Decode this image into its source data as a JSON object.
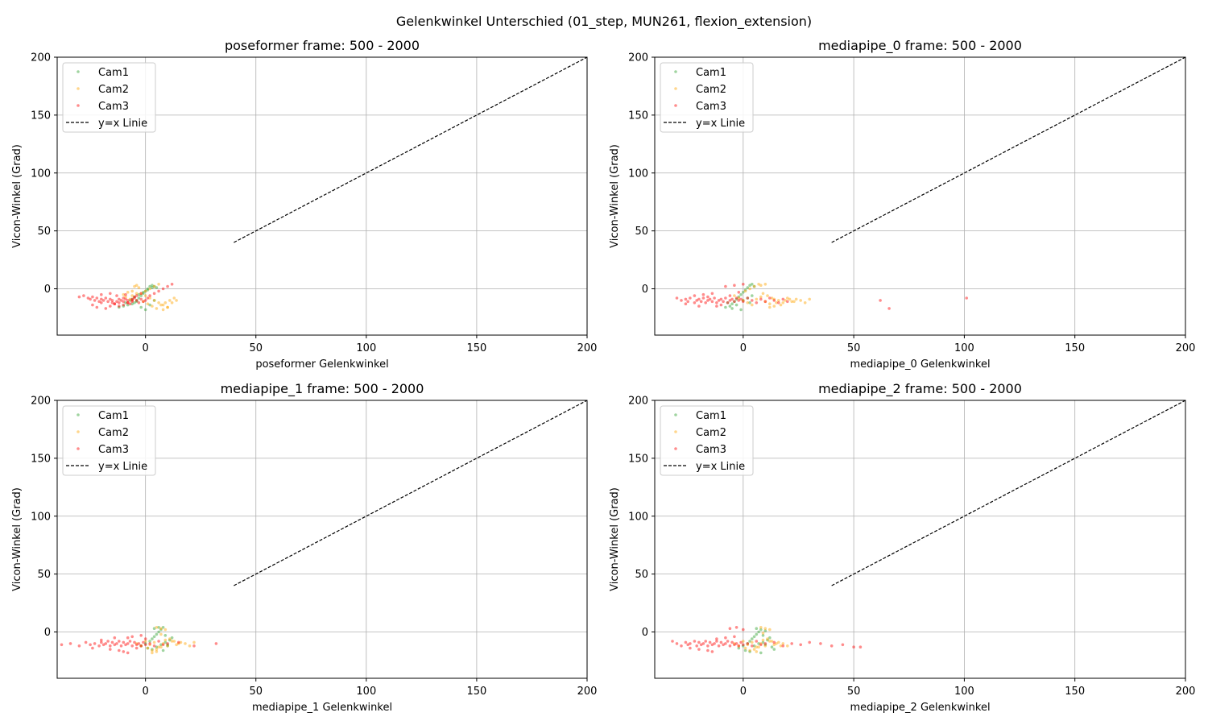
{
  "figure": {
    "suptitle": "Gelenkwinkel Unterschied (01_step, MUN261, flexion_extension)"
  },
  "colors": {
    "Cam1": "#2ca02c",
    "Cam2": "#ffa500",
    "Cam3": "#ff0000",
    "ref_line": "#000000",
    "grid": "#b0b0b0"
  },
  "chart_data": [
    {
      "type": "scatter",
      "title": "poseformer frame: 500 - 2000",
      "xlabel": "poseformer Gelenkwinkel",
      "ylabel": "Vicon-Winkel (Grad)",
      "xlim": [
        -40,
        200
      ],
      "ylim": [
        -40,
        200
      ],
      "xticks": [
        0,
        50,
        100,
        150,
        200
      ],
      "yticks": [
        0,
        50,
        100,
        150,
        200
      ],
      "grid": true,
      "legend": "top-left",
      "legend_entries": [
        "Cam1",
        "Cam2",
        "Cam3",
        "y=x Linie"
      ],
      "reference_line": {
        "name": "y=x Linie",
        "from": 40,
        "to": 200
      },
      "series": [
        {
          "name": "Cam1",
          "color": "#2ca02c",
          "x": [
            -12,
            -10,
            -8,
            -6,
            -5,
            -4,
            -3,
            -2,
            -1,
            0,
            1,
            2,
            3,
            4,
            5,
            -9,
            -7,
            -5,
            -3,
            -1,
            1,
            3,
            -2,
            0,
            2,
            4,
            -6,
            -4
          ],
          "y": [
            -16,
            -15,
            -14,
            -13,
            -12,
            -10,
            -8,
            -6,
            -4,
            -2,
            0,
            2,
            3,
            2,
            1,
            -12,
            -10,
            -7,
            -5,
            -3,
            -1,
            1,
            -16,
            -18,
            -14,
            -10,
            -9,
            -11
          ]
        },
        {
          "name": "Cam2",
          "color": "#ffa500",
          "x": [
            -10,
            -8,
            -6,
            -5,
            -4,
            -3,
            -2,
            0,
            2,
            4,
            6,
            8,
            10,
            12,
            14,
            -9,
            -7,
            -1,
            1,
            3,
            5,
            7,
            9,
            11,
            13,
            -6,
            -4,
            0,
            2,
            4,
            6,
            8,
            10
          ],
          "y": [
            -5,
            -3,
            -2,
            2,
            3,
            1,
            -4,
            -6,
            -8,
            -10,
            -12,
            -14,
            -16,
            -12,
            -10,
            -7,
            -9,
            -11,
            -13,
            -15,
            -17,
            -14,
            -12,
            -10,
            -8,
            -6,
            -4,
            -2,
            0,
            2,
            4,
            -18,
            -16
          ]
        },
        {
          "name": "Cam3",
          "color": "#ff0000",
          "x": [
            -30,
            -28,
            -26,
            -25,
            -24,
            -23,
            -22,
            -21,
            -20,
            -20,
            -19,
            -18,
            -17,
            -16,
            -15,
            -15,
            -14,
            -13,
            -12,
            -12,
            -11,
            -10,
            -10,
            -9,
            -8,
            -8,
            -7,
            -6,
            -6,
            -5,
            -4,
            -3,
            -2,
            -1,
            0,
            1,
            2,
            4,
            6,
            8,
            10,
            12,
            -24,
            -22,
            -18,
            -16,
            -14,
            -12,
            -10,
            -8,
            -6,
            -4,
            -2,
            -20,
            -16,
            -13,
            -9,
            -5
          ],
          "y": [
            -7,
            -6,
            -8,
            -9,
            -7,
            -10,
            -8,
            -11,
            -9,
            -12,
            -10,
            -8,
            -11,
            -9,
            -12,
            -10,
            -13,
            -11,
            -9,
            -12,
            -10,
            -8,
            -11,
            -9,
            -12,
            -10,
            -13,
            -11,
            -9,
            -8,
            -10,
            -12,
            -9,
            -11,
            -10,
            -8,
            -6,
            -4,
            -2,
            0,
            2,
            4,
            -14,
            -16,
            -17,
            -15,
            -13,
            -15,
            -14,
            -12,
            -10,
            -6,
            -4,
            -5,
            -4,
            -6,
            -5,
            -7
          ]
        }
      ]
    },
    {
      "type": "scatter",
      "title": "mediapipe_0 frame: 500 - 2000",
      "xlabel": "mediapipe_0 Gelenkwinkel",
      "ylabel": "Vicon-Winkel (Grad)",
      "xlim": [
        -40,
        200
      ],
      "ylim": [
        -40,
        200
      ],
      "xticks": [
        0,
        50,
        100,
        150,
        200
      ],
      "yticks": [
        0,
        50,
        100,
        150,
        200
      ],
      "grid": true,
      "legend": "top-left",
      "legend_entries": [
        "Cam1",
        "Cam2",
        "Cam3",
        "y=x Linie"
      ],
      "reference_line": {
        "name": "y=x Linie",
        "from": 40,
        "to": 200
      },
      "series": [
        {
          "name": "Cam1",
          "color": "#2ca02c",
          "x": [
            -8,
            -6,
            -5,
            -4,
            -3,
            -2,
            -1,
            0,
            1,
            2,
            3,
            4,
            5,
            -7,
            -3,
            0,
            2,
            4,
            -5,
            -1,
            3
          ],
          "y": [
            -16,
            -15,
            -13,
            -11,
            -9,
            -7,
            -5,
            -3,
            -1,
            1,
            3,
            4,
            2,
            -12,
            -14,
            -10,
            -8,
            -6,
            -17,
            -18,
            -12
          ]
        },
        {
          "name": "Cam2",
          "color": "#ffa500",
          "x": [
            -4,
            -2,
            0,
            2,
            4,
            6,
            8,
            10,
            12,
            14,
            16,
            18,
            20,
            22,
            24,
            26,
            28,
            30,
            1,
            3,
            5,
            7,
            9,
            11,
            13,
            15,
            17,
            19,
            21,
            23,
            8,
            10,
            12,
            14
          ],
          "y": [
            -6,
            -8,
            -10,
            -12,
            -14,
            -9,
            -7,
            -11,
            -13,
            -9,
            -10,
            -12,
            -8,
            -11,
            -9,
            -10,
            -12,
            -9,
            -2,
            0,
            2,
            4,
            -4,
            -6,
            -8,
            -12,
            -14,
            -10,
            -9,
            -11,
            3,
            4,
            -16,
            -15
          ]
        },
        {
          "name": "Cam3",
          "color": "#ff0000",
          "x": [
            -30,
            -28,
            -26,
            -25,
            -24,
            -22,
            -21,
            -20,
            -19,
            -18,
            -17,
            -16,
            -15,
            -14,
            -13,
            -12,
            -11,
            -10,
            -9,
            -8,
            -7,
            -6,
            -5,
            -4,
            -3,
            -2,
            -1,
            0,
            2,
            4,
            6,
            8,
            10,
            12,
            14,
            16,
            18,
            20,
            -26,
            -22,
            -18,
            -14,
            -10,
            -6,
            -2,
            -12,
            -8,
            -4,
            0,
            62,
            66,
            101,
            -20,
            -16
          ],
          "y": [
            -8,
            -10,
            -9,
            -11,
            -8,
            -12,
            -10,
            -9,
            -11,
            -8,
            -12,
            -10,
            -9,
            -11,
            -8,
            -12,
            -10,
            -9,
            -11,
            -8,
            -12,
            -10,
            -9,
            -11,
            -8,
            -10,
            -9,
            -11,
            -8,
            -10,
            -12,
            -9,
            -11,
            -8,
            -10,
            -12,
            -9,
            -11,
            -13,
            -6,
            -5,
            -4,
            -14,
            -6,
            -3,
            -15,
            2,
            3,
            4,
            -10,
            -17,
            -8,
            -15,
            -7
          ]
        }
      ]
    },
    {
      "type": "scatter",
      "title": "mediapipe_1 frame: 500 - 2000",
      "xlabel": "mediapipe_1 Gelenkwinkel",
      "ylabel": "Vicon-Winkel (Grad)",
      "xlim": [
        -40,
        200
      ],
      "ylim": [
        -40,
        200
      ],
      "xticks": [
        0,
        50,
        100,
        150,
        200
      ],
      "yticks": [
        0,
        50,
        100,
        150,
        200
      ],
      "grid": true,
      "legend": "top-left",
      "legend_entries": [
        "Cam1",
        "Cam2",
        "Cam3",
        "y=x Linie"
      ],
      "reference_line": {
        "name": "y=x Linie",
        "from": 40,
        "to": 200
      },
      "series": [
        {
          "name": "Cam1",
          "color": "#2ca02c",
          "x": [
            -2,
            0,
            2,
            3,
            4,
            5,
            6,
            7,
            8,
            9,
            10,
            11,
            12,
            1,
            3,
            5,
            7,
            9,
            4,
            6,
            8,
            10
          ],
          "y": [
            -12,
            -10,
            -8,
            -6,
            -4,
            -2,
            0,
            2,
            4,
            -9,
            -11,
            -7,
            -5,
            -14,
            -15,
            -13,
            -11,
            -3,
            3,
            4,
            -16,
            -12
          ]
        },
        {
          "name": "Cam2",
          "color": "#ffa500",
          "x": [
            -4,
            -2,
            0,
            2,
            4,
            6,
            8,
            10,
            12,
            14,
            16,
            18,
            20,
            22,
            1,
            3,
            5,
            7,
            9,
            11,
            13,
            15,
            5,
            7,
            9,
            3,
            5,
            7
          ],
          "y": [
            -10,
            -12,
            -8,
            -11,
            -9,
            -13,
            -10,
            -12,
            -8,
            -11,
            -9,
            -10,
            -12,
            -9,
            -14,
            -16,
            -15,
            -13,
            -7,
            -6,
            -8,
            -10,
            4,
            3,
            2,
            -18,
            -17,
            -2
          ]
        },
        {
          "name": "Cam3",
          "color": "#ff0000",
          "x": [
            -38,
            -34,
            -30,
            -27,
            -25,
            -23,
            -21,
            -20,
            -19,
            -18,
            -17,
            -16,
            -15,
            -14,
            -13,
            -12,
            -11,
            -10,
            -9,
            -8,
            -7,
            -6,
            -5,
            -4,
            -3,
            -2,
            -1,
            0,
            2,
            4,
            6,
            8,
            10,
            15,
            22,
            32,
            -24,
            -20,
            -16,
            -12,
            -8,
            -4,
            0,
            -10,
            -6,
            -2,
            -14,
            -8
          ],
          "y": [
            -11,
            -10,
            -12,
            -9,
            -11,
            -10,
            -12,
            -9,
            -11,
            -10,
            -8,
            -12,
            -9,
            -11,
            -10,
            -8,
            -12,
            -9,
            -11,
            -10,
            -8,
            -12,
            -9,
            -11,
            -10,
            -12,
            -9,
            -11,
            -10,
            -12,
            -8,
            -11,
            -10,
            -9,
            -12,
            -10,
            -14,
            -7,
            -15,
            -16,
            -5,
            -14,
            -6,
            -17,
            -4,
            -3,
            -5,
            -18
          ]
        }
      ]
    },
    {
      "type": "scatter",
      "title": "mediapipe_2 frame: 500 - 2000",
      "xlabel": "mediapipe_2 Gelenkwinkel",
      "ylabel": "Vicon-Winkel (Grad)",
      "xlim": [
        -40,
        200
      ],
      "ylim": [
        -40,
        200
      ],
      "xticks": [
        0,
        50,
        100,
        150,
        200
      ],
      "yticks": [
        0,
        50,
        100,
        150,
        200
      ],
      "grid": true,
      "legend": "top-left",
      "legend_entries": [
        "Cam1",
        "Cam2",
        "Cam3",
        "y=x Linie"
      ],
      "reference_line": {
        "name": "y=x Linie",
        "from": 40,
        "to": 200
      },
      "series": [
        {
          "name": "Cam1",
          "color": "#2ca02c",
          "x": [
            -2,
            0,
            2,
            3,
            4,
            5,
            6,
            7,
            8,
            9,
            10,
            11,
            12,
            13,
            14,
            1,
            3,
            5,
            7,
            9,
            6,
            8,
            10
          ],
          "y": [
            -14,
            -12,
            -10,
            -8,
            -6,
            -4,
            -2,
            0,
            2,
            -9,
            -11,
            -7,
            -5,
            -13,
            -15,
            -16,
            -17,
            -12,
            -10,
            -3,
            3,
            -18,
            1
          ]
        },
        {
          "name": "Cam2",
          "color": "#ffa500",
          "x": [
            -4,
            -2,
            0,
            2,
            4,
            6,
            8,
            10,
            12,
            14,
            16,
            18,
            20,
            1,
            3,
            5,
            7,
            9,
            11,
            13,
            15,
            17,
            8,
            10,
            12,
            6,
            9
          ],
          "y": [
            -10,
            -12,
            -8,
            -11,
            -9,
            -13,
            -10,
            -12,
            -8,
            -11,
            -9,
            -10,
            -12,
            -14,
            -16,
            -15,
            -13,
            -7,
            -6,
            -8,
            -10,
            -12,
            4,
            3,
            2,
            -17,
            -1
          ]
        },
        {
          "name": "Cam3",
          "color": "#ff0000",
          "x": [
            -32,
            -30,
            -28,
            -26,
            -25,
            -24,
            -22,
            -21,
            -20,
            -19,
            -18,
            -17,
            -16,
            -15,
            -14,
            -13,
            -12,
            -11,
            -10,
            -9,
            -8,
            -7,
            -6,
            -5,
            -4,
            -3,
            -2,
            -1,
            0,
            2,
            4,
            6,
            8,
            10,
            14,
            18,
            22,
            26,
            30,
            35,
            40,
            45,
            50,
            53,
            -24,
            -20,
            -16,
            -12,
            -8,
            -4,
            -6,
            -3,
            0,
            -14
          ],
          "y": [
            -8,
            -10,
            -12,
            -9,
            -11,
            -10,
            -8,
            -12,
            -9,
            -11,
            -10,
            -8,
            -12,
            -9,
            -11,
            -10,
            -8,
            -12,
            -9,
            -11,
            -10,
            -8,
            -12,
            -9,
            -11,
            -10,
            -12,
            -9,
            -11,
            -10,
            -12,
            -8,
            -11,
            -10,
            -9,
            -12,
            -10,
            -11,
            -9,
            -10,
            -12,
            -11,
            -13,
            -13,
            -14,
            -15,
            -16,
            -6,
            -5,
            -4,
            3,
            4,
            2,
            -17
          ]
        }
      ]
    }
  ]
}
